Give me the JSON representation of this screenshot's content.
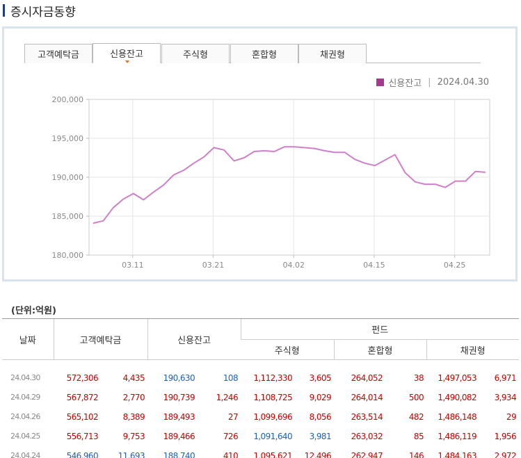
{
  "page_title": "증시자금동향",
  "tabs": [
    {
      "label": "고객예탁금",
      "active": false
    },
    {
      "label": "신용잔고",
      "active": true
    },
    {
      "label": "주식형",
      "active": false
    },
    {
      "label": "혼합형",
      "active": false
    },
    {
      "label": "채권형",
      "active": false
    }
  ],
  "legend": {
    "series": "신용잔고",
    "date": "2024.04.30",
    "color": "#a7388f"
  },
  "chart_data": {
    "type": "line",
    "ylim": [
      180000,
      200000
    ],
    "yticks": [
      "200,000",
      "195,000",
      "190,000",
      "185,000",
      "180,000"
    ],
    "xticks": [
      "03.11",
      "03.21",
      "04.02",
      "04.15",
      "04.25"
    ],
    "series": [
      {
        "values": [
          184100,
          184400,
          186100,
          187200,
          187900,
          187100,
          188100,
          189000,
          190300,
          190900,
          191800,
          192600,
          193800,
          193500,
          192100,
          192500,
          193300,
          193400,
          193300,
          193900,
          193900,
          193800,
          193700,
          193400,
          193200,
          193200,
          192300,
          191800,
          191500,
          192200,
          192900,
          190600,
          189400,
          189100,
          189100,
          188700,
          189500,
          189500,
          190739,
          190630
        ]
      }
    ]
  },
  "unit_label": "(단위:억원)",
  "table": {
    "headers": {
      "date": "날짜",
      "deposit": "고객예탁금",
      "credit": "신용잔고",
      "fund": "펀드",
      "stock": "주식형",
      "mixed": "혼합형",
      "bond": "채권형"
    },
    "rows": [
      {
        "date": "24.04.30",
        "dep": "572,306",
        "depc": "4,435",
        "cr": "190,630",
        "crc": "108",
        "st": "1,112,330",
        "stc": "3,605",
        "mx": "264,052",
        "mxc": "38",
        "bd": "1,497,053",
        "bdc": "6,971",
        "blue": [
          "cr",
          "crc"
        ]
      },
      {
        "date": "24.04.29",
        "dep": "567,872",
        "depc": "2,770",
        "cr": "190,739",
        "crc": "1,246",
        "st": "1,108,725",
        "stc": "9,029",
        "mx": "264,014",
        "mxc": "500",
        "bd": "1,490,082",
        "bdc": "3,934",
        "blue": []
      },
      {
        "date": "24.04.26",
        "dep": "565,102",
        "depc": "8,389",
        "cr": "189,493",
        "crc": "27",
        "st": "1,099,696",
        "stc": "8,056",
        "mx": "263,514",
        "mxc": "482",
        "bd": "1,486,148",
        "bdc": "29",
        "blue": []
      },
      {
        "date": "24.04.25",
        "dep": "556,713",
        "depc": "9,753",
        "cr": "189,466",
        "crc": "726",
        "st": "1,091,640",
        "stc": "3,981",
        "mx": "263,032",
        "mxc": "85",
        "bd": "1,486,119",
        "bdc": "1,956",
        "blue": [
          "st",
          "stc"
        ]
      },
      {
        "date": "24.04.24",
        "dep": "546,960",
        "depc": "11,693",
        "cr": "188,740",
        "crc": "410",
        "st": "1,095,621",
        "stc": "12,496",
        "mx": "262,947",
        "mxc": "146",
        "bd": "1,484,163",
        "bdc": "2,972",
        "blue": [
          "dep",
          "depc",
          "cr"
        ]
      }
    ]
  }
}
